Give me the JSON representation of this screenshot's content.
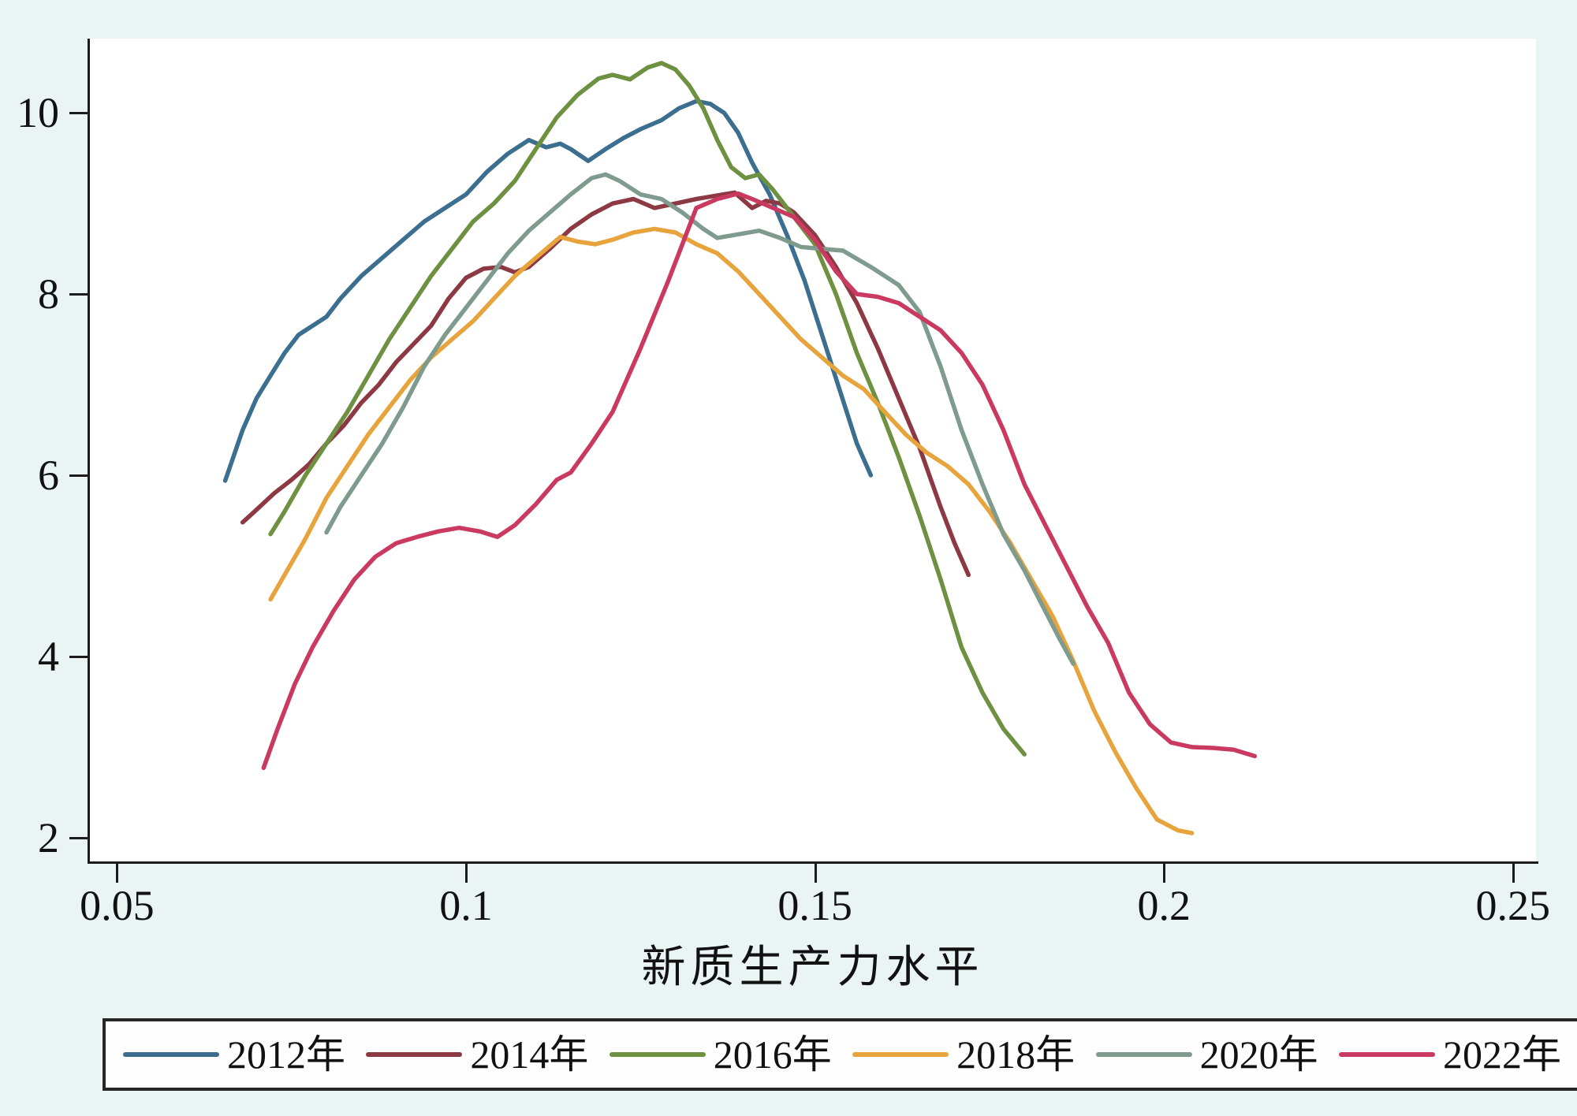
{
  "chart_data": {
    "type": "line",
    "title": "",
    "xlabel": "新质生产力水平",
    "ylabel": "",
    "grid": false,
    "legend_position": "bottom-outside",
    "background_color": "#e9f4f3",
    "plot_background_color": "#ffffff",
    "xlim": [
      0.046,
      0.2533
    ],
    "ylim": [
      1.72,
      10.82
    ],
    "x_ticks": [
      {
        "label": "0.05",
        "value": 0.05
      },
      {
        "label": "0.1",
        "value": 0.1
      },
      {
        "label": "0.15",
        "value": 0.15
      },
      {
        "label": "0.2",
        "value": 0.2
      },
      {
        "label": "0.25",
        "value": 0.25
      }
    ],
    "y_ticks": [
      {
        "label": "2",
        "value": 2
      },
      {
        "label": "4",
        "value": 4
      },
      {
        "label": "6",
        "value": 6
      },
      {
        "label": "8",
        "value": 8
      },
      {
        "label": "10",
        "value": 10
      }
    ],
    "series": [
      {
        "name": "2012年",
        "color": "#3c6e8f",
        "x": [
          0.0655,
          0.068,
          0.07,
          0.072,
          0.074,
          0.076,
          0.078,
          0.08,
          0.082,
          0.085,
          0.088,
          0.091,
          0.094,
          0.097,
          0.1,
          0.103,
          0.106,
          0.109,
          0.1115,
          0.1135,
          0.115,
          0.1175,
          0.12,
          0.1225,
          0.125,
          0.128,
          0.1305,
          0.133,
          0.135,
          0.137,
          0.139,
          0.141,
          0.1435,
          0.146,
          0.1485,
          0.151,
          0.1535,
          0.156,
          0.158
        ],
        "y": [
          5.94,
          6.5,
          6.85,
          7.1,
          7.35,
          7.55,
          7.65,
          7.75,
          7.95,
          8.2,
          8.4,
          8.6,
          8.8,
          8.95,
          9.1,
          9.35,
          9.55,
          9.7,
          9.62,
          9.66,
          9.6,
          9.47,
          9.6,
          9.72,
          9.82,
          9.92,
          10.05,
          10.13,
          10.1,
          10.0,
          9.78,
          9.45,
          9.1,
          8.65,
          8.15,
          7.55,
          6.95,
          6.35,
          6.0
        ]
      },
      {
        "name": "2014年",
        "color": "#8c3944",
        "x": [
          0.068,
          0.07,
          0.0725,
          0.075,
          0.0775,
          0.08,
          0.0825,
          0.085,
          0.0875,
          0.09,
          0.0925,
          0.095,
          0.0975,
          0.1,
          0.1025,
          0.105,
          0.107,
          0.109,
          0.112,
          0.115,
          0.118,
          0.121,
          0.124,
          0.127,
          0.13,
          0.133,
          0.136,
          0.1385,
          0.141,
          0.143,
          0.145,
          0.147,
          0.15,
          0.153,
          0.156,
          0.159,
          0.162,
          0.165,
          0.168,
          0.17,
          0.172
        ],
        "y": [
          5.48,
          5.62,
          5.8,
          5.95,
          6.12,
          6.35,
          6.55,
          6.8,
          7.0,
          7.25,
          7.45,
          7.65,
          7.95,
          8.18,
          8.28,
          8.3,
          8.24,
          8.3,
          8.5,
          8.72,
          8.88,
          9.0,
          9.05,
          8.95,
          9.0,
          9.05,
          9.09,
          9.12,
          8.95,
          9.03,
          9.0,
          8.9,
          8.65,
          8.3,
          7.9,
          7.4,
          6.85,
          6.3,
          5.65,
          5.25,
          4.9
        ]
      },
      {
        "name": "2016年",
        "color": "#6d9041",
        "x": [
          0.072,
          0.074,
          0.077,
          0.08,
          0.083,
          0.086,
          0.089,
          0.092,
          0.095,
          0.098,
          0.101,
          0.104,
          0.107,
          0.11,
          0.113,
          0.116,
          0.119,
          0.121,
          0.1235,
          0.126,
          0.128,
          0.13,
          0.132,
          0.134,
          0.136,
          0.138,
          0.14,
          0.142,
          0.144,
          0.147,
          0.15,
          0.153,
          0.156,
          0.159,
          0.162,
          0.165,
          0.168,
          0.171,
          0.174,
          0.177,
          0.18
        ],
        "y": [
          5.35,
          5.6,
          6.0,
          6.35,
          6.7,
          7.1,
          7.5,
          7.85,
          8.2,
          8.5,
          8.8,
          9.0,
          9.25,
          9.6,
          9.95,
          10.2,
          10.38,
          10.42,
          10.37,
          10.5,
          10.55,
          10.48,
          10.3,
          10.05,
          9.7,
          9.4,
          9.28,
          9.32,
          9.15,
          8.85,
          8.55,
          8.0,
          7.35,
          6.8,
          6.2,
          5.55,
          4.85,
          4.1,
          3.6,
          3.2,
          2.92
        ]
      },
      {
        "name": "2018年",
        "color": "#e7a33c",
        "x": [
          0.072,
          0.074,
          0.077,
          0.08,
          0.083,
          0.086,
          0.089,
          0.092,
          0.095,
          0.098,
          0.101,
          0.104,
          0.107,
          0.11,
          0.1135,
          0.116,
          0.1185,
          0.121,
          0.124,
          0.127,
          0.13,
          0.133,
          0.136,
          0.139,
          0.142,
          0.145,
          0.148,
          0.151,
          0.154,
          0.157,
          0.16,
          0.163,
          0.166,
          0.169,
          0.172,
          0.175,
          0.178,
          0.181,
          0.184,
          0.187,
          0.19,
          0.193,
          0.196,
          0.199,
          0.202,
          0.204
        ],
        "y": [
          4.63,
          4.9,
          5.3,
          5.75,
          6.1,
          6.45,
          6.75,
          7.05,
          7.3,
          7.5,
          7.7,
          7.95,
          8.2,
          8.4,
          8.63,
          8.58,
          8.55,
          8.6,
          8.68,
          8.72,
          8.68,
          8.55,
          8.45,
          8.25,
          8.0,
          7.75,
          7.5,
          7.3,
          7.1,
          6.95,
          6.7,
          6.45,
          6.25,
          6.1,
          5.9,
          5.6,
          5.25,
          4.85,
          4.45,
          3.95,
          3.4,
          2.95,
          2.55,
          2.2,
          2.08,
          2.05
        ]
      },
      {
        "name": "2020年",
        "color": "#7e9b8d",
        "x": [
          0.08,
          0.082,
          0.085,
          0.088,
          0.091,
          0.094,
          0.097,
          0.1,
          0.103,
          0.106,
          0.109,
          0.112,
          0.115,
          0.118,
          0.12,
          0.122,
          0.125,
          0.128,
          0.131,
          0.134,
          0.136,
          0.139,
          0.142,
          0.145,
          0.148,
          0.151,
          0.154,
          0.158,
          0.162,
          0.165,
          0.168,
          0.171,
          0.174,
          0.177,
          0.18,
          0.183,
          0.185,
          0.187
        ],
        "y": [
          5.37,
          5.65,
          6.0,
          6.35,
          6.75,
          7.2,
          7.55,
          7.85,
          8.15,
          8.45,
          8.7,
          8.9,
          9.1,
          9.28,
          9.32,
          9.25,
          9.1,
          9.05,
          8.9,
          8.72,
          8.62,
          8.66,
          8.7,
          8.62,
          8.52,
          8.5,
          8.48,
          8.3,
          8.1,
          7.8,
          7.2,
          6.5,
          5.9,
          5.35,
          4.95,
          4.5,
          4.2,
          3.92
        ]
      },
      {
        "name": "2022年",
        "color": "#ca3a60",
        "x": [
          0.071,
          0.073,
          0.0755,
          0.078,
          0.081,
          0.084,
          0.087,
          0.09,
          0.093,
          0.096,
          0.099,
          0.102,
          0.1045,
          0.107,
          0.11,
          0.113,
          0.115,
          0.118,
          0.121,
          0.125,
          0.129,
          0.133,
          0.136,
          0.139,
          0.141,
          0.144,
          0.147,
          0.15,
          0.153,
          0.156,
          0.159,
          0.162,
          0.165,
          0.168,
          0.171,
          0.174,
          0.177,
          0.18,
          0.183,
          0.186,
          0.189,
          0.192,
          0.195,
          0.198,
          0.201,
          0.204,
          0.207,
          0.21,
          0.213
        ],
        "y": [
          2.77,
          3.2,
          3.7,
          4.1,
          4.5,
          4.85,
          5.1,
          5.25,
          5.32,
          5.38,
          5.42,
          5.38,
          5.32,
          5.45,
          5.68,
          5.95,
          6.03,
          6.35,
          6.7,
          7.4,
          8.15,
          8.95,
          9.05,
          9.11,
          9.05,
          8.95,
          8.85,
          8.6,
          8.25,
          8.0,
          7.97,
          7.9,
          7.75,
          7.6,
          7.35,
          7.0,
          6.5,
          5.9,
          5.45,
          5.0,
          4.55,
          4.15,
          3.6,
          3.25,
          3.05,
          3.0,
          2.99,
          2.97,
          2.9
        ]
      }
    ]
  }
}
